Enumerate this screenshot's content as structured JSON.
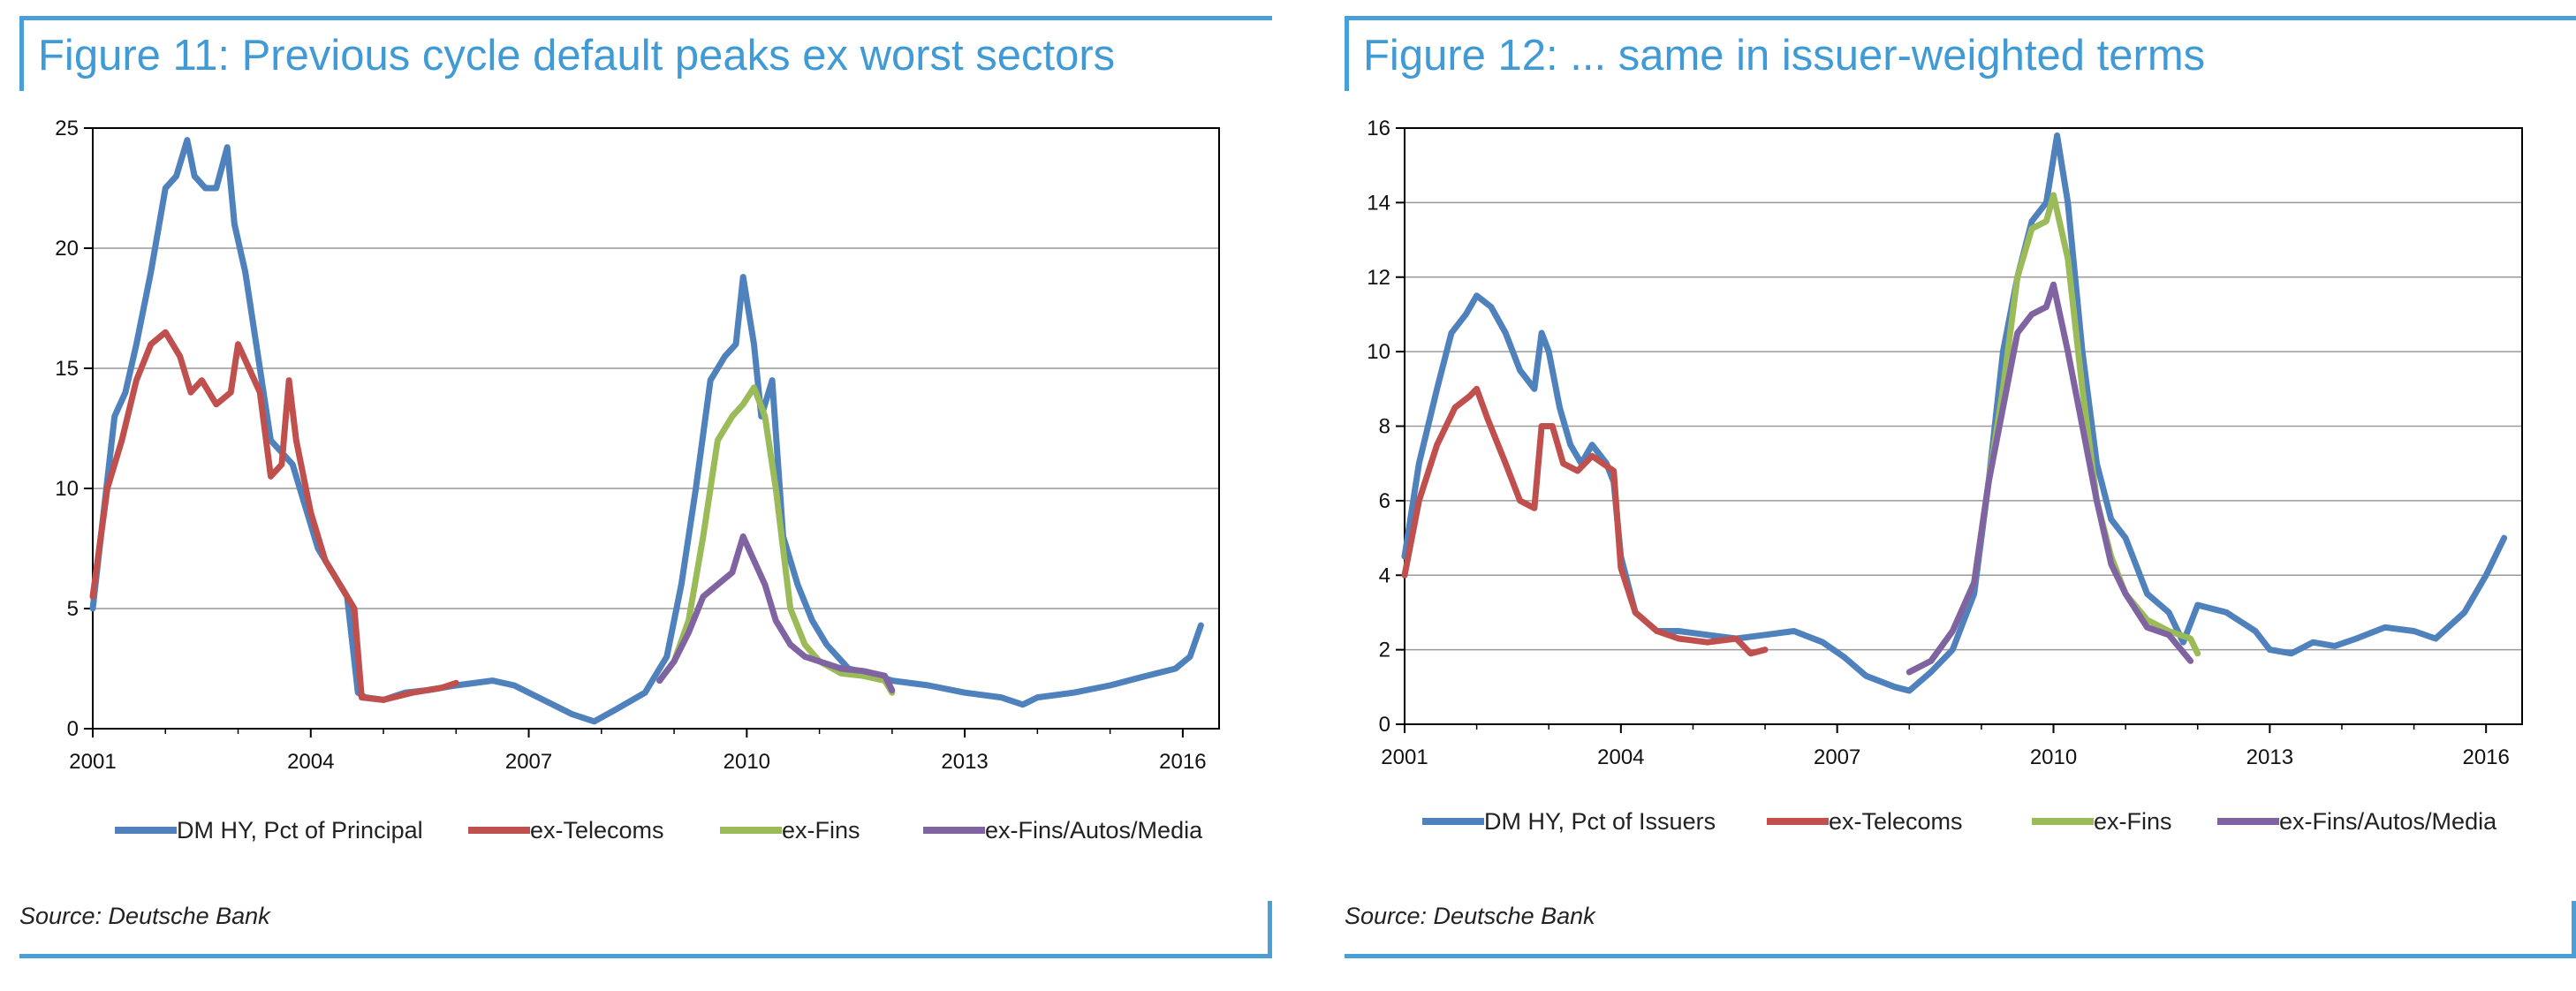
{
  "panels": [
    {
      "title": "Figure 11: Previous cycle default peaks ex worst sectors",
      "source": "Source: Deutsche Bank"
    },
    {
      "title": "Figure 12: ... same in issuer-weighted terms",
      "source": "Source: Deutsche Bank"
    }
  ],
  "chart_data": [
    {
      "type": "line",
      "title": "Figure 11: Previous cycle default peaks ex worst sectors",
      "xlim": [
        2001,
        2016.5
      ],
      "ylim": [
        0,
        25
      ],
      "x_ticks": [
        2001,
        2004,
        2007,
        2010,
        2013,
        2016
      ],
      "y_ticks": [
        0,
        5,
        10,
        15,
        20,
        25
      ],
      "grid": "horizontal",
      "legend_position": "bottom",
      "series": [
        {
          "name": "DM HY, Pct of Principal",
          "color": "#4f81bd",
          "x": [
            2001,
            2001.15,
            2001.3,
            2001.45,
            2001.6,
            2001.8,
            2002.0,
            2002.15,
            2002.3,
            2002.4,
            2002.55,
            2002.7,
            2002.85,
            2002.95,
            2003.1,
            2003.3,
            2003.45,
            2003.6,
            2003.75,
            2003.9,
            2004.1,
            2004.3,
            2004.5,
            2004.65,
            2004.75,
            2005.0,
            2005.3,
            2005.6,
            2006.0,
            2006.5,
            2006.8,
            2007.2,
            2007.6,
            2007.9,
            2008.2,
            2008.6,
            2008.9,
            2009.1,
            2009.3,
            2009.5,
            2009.7,
            2009.85,
            2009.95,
            2010.1,
            2010.2,
            2010.35,
            2010.5,
            2010.7,
            2010.9,
            2011.1,
            2011.4,
            2011.7,
            2012.0,
            2012.5,
            2013.0,
            2013.5,
            2013.8,
            2014.0,
            2014.5,
            2015.0,
            2015.5,
            2015.9,
            2016.1,
            2016.25
          ],
          "y": [
            5,
            9,
            13,
            14,
            16,
            19,
            22.5,
            23,
            24.5,
            23,
            22.5,
            22.5,
            24.2,
            21,
            19,
            15,
            12,
            11.5,
            11,
            9.5,
            7.5,
            6.5,
            5.5,
            1.5,
            1.3,
            1.2,
            1.5,
            1.6,
            1.8,
            2.0,
            1.8,
            1.2,
            0.6,
            0.3,
            0.8,
            1.5,
            3,
            6,
            10,
            14.5,
            15.5,
            16,
            18.8,
            16,
            13,
            14.5,
            8,
            6,
            4.5,
            3.5,
            2.5,
            2.3,
            2.0,
            1.8,
            1.5,
            1.3,
            1.0,
            1.3,
            1.5,
            1.8,
            2.2,
            2.5,
            3.0,
            4.3
          ]
        },
        {
          "name": "ex-Telecoms",
          "color": "#c0504d",
          "x": [
            2001,
            2001.2,
            2001.4,
            2001.6,
            2001.8,
            2002.0,
            2002.2,
            2002.35,
            2002.5,
            2002.7,
            2002.9,
            2003.0,
            2003.15,
            2003.3,
            2003.45,
            2003.6,
            2003.7,
            2003.8,
            2004.0,
            2004.2,
            2004.4,
            2004.6,
            2004.7,
            2005.0,
            2005.4,
            2005.8,
            2006.0
          ],
          "y": [
            5.5,
            10,
            12,
            14.5,
            16,
            16.5,
            15.5,
            14,
            14.5,
            13.5,
            14,
            16,
            15,
            14,
            10.5,
            11,
            14.5,
            12,
            9,
            7,
            6,
            5,
            1.3,
            1.2,
            1.5,
            1.7,
            1.9
          ]
        },
        {
          "name": "ex-Fins",
          "color": "#9bbb59",
          "x": [
            2008.8,
            2009.0,
            2009.2,
            2009.4,
            2009.6,
            2009.8,
            2009.95,
            2010.1,
            2010.25,
            2010.4,
            2010.6,
            2010.8,
            2011.0,
            2011.3,
            2011.6,
            2011.9,
            2012.0
          ],
          "y": [
            2,
            2.8,
            4.5,
            8,
            12,
            13,
            13.5,
            14.2,
            13,
            10,
            5,
            3.5,
            2.8,
            2.3,
            2.2,
            2.0,
            1.5
          ]
        },
        {
          "name": "ex-Fins/Autos/Media",
          "color": "#8064a2",
          "x": [
            2008.8,
            2009.0,
            2009.2,
            2009.4,
            2009.6,
            2009.8,
            2009.95,
            2010.1,
            2010.25,
            2010.4,
            2010.6,
            2010.8,
            2011.0,
            2011.3,
            2011.6,
            2011.9,
            2012.0
          ],
          "y": [
            2,
            2.8,
            4,
            5.5,
            6,
            6.5,
            8,
            7,
            6,
            4.5,
            3.5,
            3,
            2.8,
            2.5,
            2.4,
            2.2,
            1.6
          ]
        }
      ]
    },
    {
      "type": "line",
      "title": "Figure 12: ... same in issuer-weighted terms",
      "xlim": [
        2001,
        2016.5
      ],
      "ylim": [
        0,
        16
      ],
      "x_ticks": [
        2001,
        2004,
        2007,
        2010,
        2013,
        2016
      ],
      "y_ticks": [
        0,
        2,
        4,
        6,
        8,
        10,
        12,
        14,
        16
      ],
      "grid": "horizontal",
      "legend_position": "bottom",
      "series": [
        {
          "name": "DM HY, Pct of Issuers",
          "color": "#4f81bd",
          "x": [
            2001,
            2001.2,
            2001.45,
            2001.65,
            2001.85,
            2002.0,
            2002.2,
            2002.4,
            2002.6,
            2002.8,
            2002.9,
            2003.0,
            2003.15,
            2003.3,
            2003.45,
            2003.6,
            2003.8,
            2003.9,
            2004.0,
            2004.2,
            2004.5,
            2004.8,
            2005.2,
            2005.6,
            2006.0,
            2006.4,
            2006.8,
            2007.1,
            2007.4,
            2007.8,
            2008.0,
            2008.3,
            2008.6,
            2008.9,
            2009.1,
            2009.3,
            2009.5,
            2009.7,
            2009.9,
            2010.05,
            2010.2,
            2010.4,
            2010.6,
            2010.8,
            2011.0,
            2011.3,
            2011.6,
            2011.8,
            2012.0,
            2012.4,
            2012.8,
            2013.0,
            2013.3,
            2013.6,
            2013.9,
            2014.2,
            2014.6,
            2015.0,
            2015.3,
            2015.7,
            2016.0,
            2016.25
          ],
          "y": [
            4.5,
            7,
            9,
            10.5,
            11,
            11.5,
            11.2,
            10.5,
            9.5,
            9,
            10.5,
            10,
            8.5,
            7.5,
            7,
            7.5,
            7,
            6.5,
            4.5,
            3,
            2.5,
            2.5,
            2.4,
            2.3,
            2.4,
            2.5,
            2.2,
            1.8,
            1.3,
            1,
            0.9,
            1.4,
            2.0,
            3.5,
            6.5,
            10,
            12,
            13.5,
            14,
            15.8,
            14,
            10,
            7,
            5.5,
            5,
            3.5,
            3,
            2.2,
            3.2,
            3,
            2.5,
            2,
            1.9,
            2.2,
            2.1,
            2.3,
            2.6,
            2.5,
            2.3,
            3,
            4,
            5
          ]
        },
        {
          "name": "ex-Telecoms",
          "color": "#c0504d",
          "x": [
            2001,
            2001.2,
            2001.45,
            2001.7,
            2001.9,
            2002.0,
            2002.15,
            2002.4,
            2002.6,
            2002.8,
            2002.9,
            2003.05,
            2003.2,
            2003.4,
            2003.6,
            2003.75,
            2003.9,
            2004.0,
            2004.2,
            2004.5,
            2004.8,
            2005.2,
            2005.6,
            2005.8,
            2006.0
          ],
          "y": [
            4,
            6,
            7.5,
            8.5,
            8.8,
            9,
            8.2,
            7,
            6,
            5.8,
            8,
            8,
            7,
            6.8,
            7.2,
            7,
            6.8,
            4.2,
            3,
            2.5,
            2.3,
            2.2,
            2.3,
            1.9,
            2.0
          ]
        },
        {
          "name": "ex-Fins",
          "color": "#9bbb59",
          "x": [
            2008.0,
            2008.3,
            2008.6,
            2008.9,
            2009.1,
            2009.3,
            2009.5,
            2009.7,
            2009.9,
            2010.0,
            2010.2,
            2010.4,
            2010.6,
            2010.8,
            2011.0,
            2011.3,
            2011.6,
            2011.9,
            2012.0
          ],
          "y": [
            1.4,
            1.7,
            2.5,
            3.8,
            6.5,
            9,
            12,
            13.3,
            13.5,
            14.2,
            12.5,
            9,
            6,
            4.5,
            3.5,
            2.8,
            2.5,
            2.3,
            1.9
          ]
        },
        {
          "name": "ex-Fins/Autos/Media",
          "color": "#8064a2",
          "x": [
            2008.0,
            2008.3,
            2008.6,
            2008.9,
            2009.1,
            2009.3,
            2009.5,
            2009.7,
            2009.9,
            2010.0,
            2010.2,
            2010.4,
            2010.6,
            2010.8,
            2011.0,
            2011.3,
            2011.6,
            2011.9
          ],
          "y": [
            1.4,
            1.7,
            2.5,
            3.8,
            6.5,
            8.5,
            10.5,
            11,
            11.2,
            11.8,
            10,
            8,
            6,
            4.3,
            3.5,
            2.6,
            2.4,
            1.7
          ]
        }
      ]
    }
  ]
}
